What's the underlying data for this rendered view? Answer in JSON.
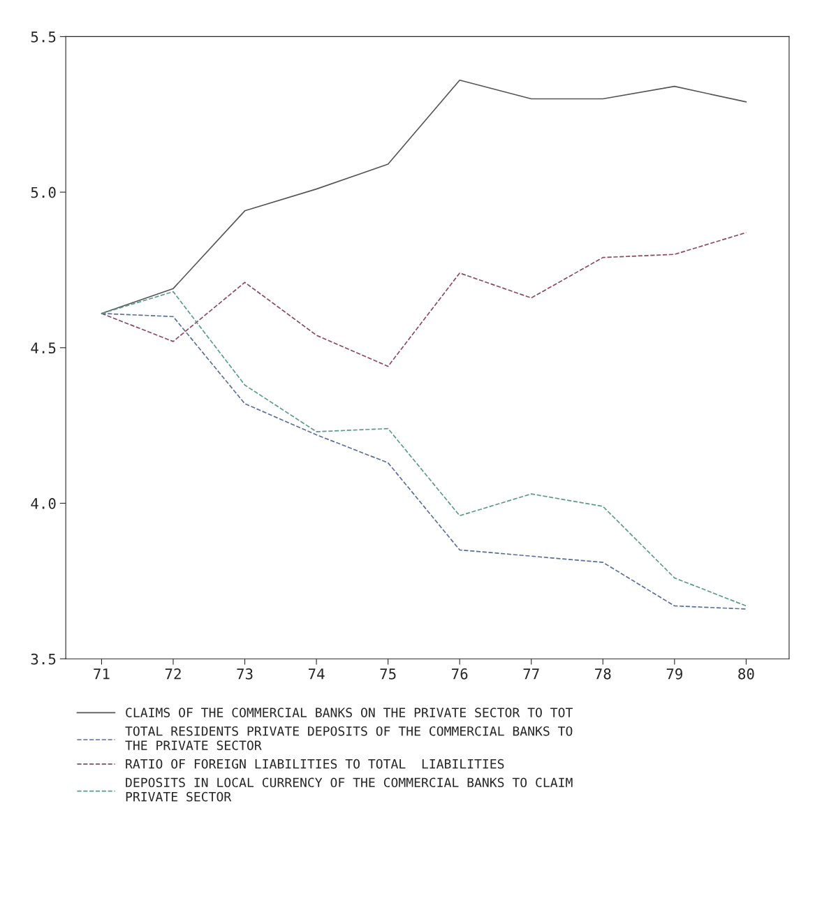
{
  "chart_data": {
    "type": "line",
    "x": [
      71,
      72,
      73,
      74,
      75,
      76,
      77,
      78,
      79,
      80
    ],
    "xlim": [
      70.5,
      80.6
    ],
    "xticks": [
      71,
      72,
      73,
      74,
      75,
      76,
      77,
      78,
      79,
      80
    ],
    "ylim": [
      3.5,
      5.5
    ],
    "yticks": [
      {
        "value": 3.5,
        "label": "3.5"
      },
      {
        "value": 4.0,
        "label": "4.0"
      },
      {
        "value": 4.5,
        "label": "4.5"
      },
      {
        "value": 5.0,
        "label": "5.0"
      },
      {
        "value": 5.5,
        "label": "5.5"
      }
    ],
    "grid": false,
    "legend": "bottom",
    "marker": "none",
    "series": [
      {
        "name": "CLAIMS OF THE COMMERCIAL BANKS ON THE PRIVATE SECTOR TO TOT",
        "color": "#555555",
        "line_style": "solid",
        "values": [
          4.61,
          4.69,
          4.94,
          5.01,
          5.09,
          5.36,
          5.3,
          5.3,
          5.34,
          5.29
        ]
      },
      {
        "name": "TOTAL RESIDENTS PRIVATE DEPOSITS OF THE COMMERCIAL BANKS TO\nTHE PRIVATE SECTOR",
        "color": "#5a6e9a",
        "line_style": "dashed",
        "values": [
          4.61,
          4.6,
          4.32,
          4.22,
          4.13,
          3.85,
          3.83,
          3.81,
          3.67,
          3.66
        ]
      },
      {
        "name": "RATIO OF FOREIGN LIABILITIES TO TOTAL  LIABILITIES",
        "color": "#8a4a5a",
        "line_style": "dashed",
        "values": [
          4.61,
          4.52,
          4.71,
          4.54,
          4.44,
          4.74,
          4.66,
          4.79,
          4.8,
          4.87
        ]
      },
      {
        "name": "DEPOSITS IN LOCAL CURRENCY OF THE COMMERCIAL BANKS TO CLAIM\nPRIVATE SECTOR",
        "color": "#5a9a8a",
        "line_style": "dashed",
        "values": [
          4.61,
          4.68,
          4.38,
          4.23,
          4.24,
          3.96,
          4.03,
          3.99,
          3.76,
          3.67
        ]
      }
    ]
  }
}
